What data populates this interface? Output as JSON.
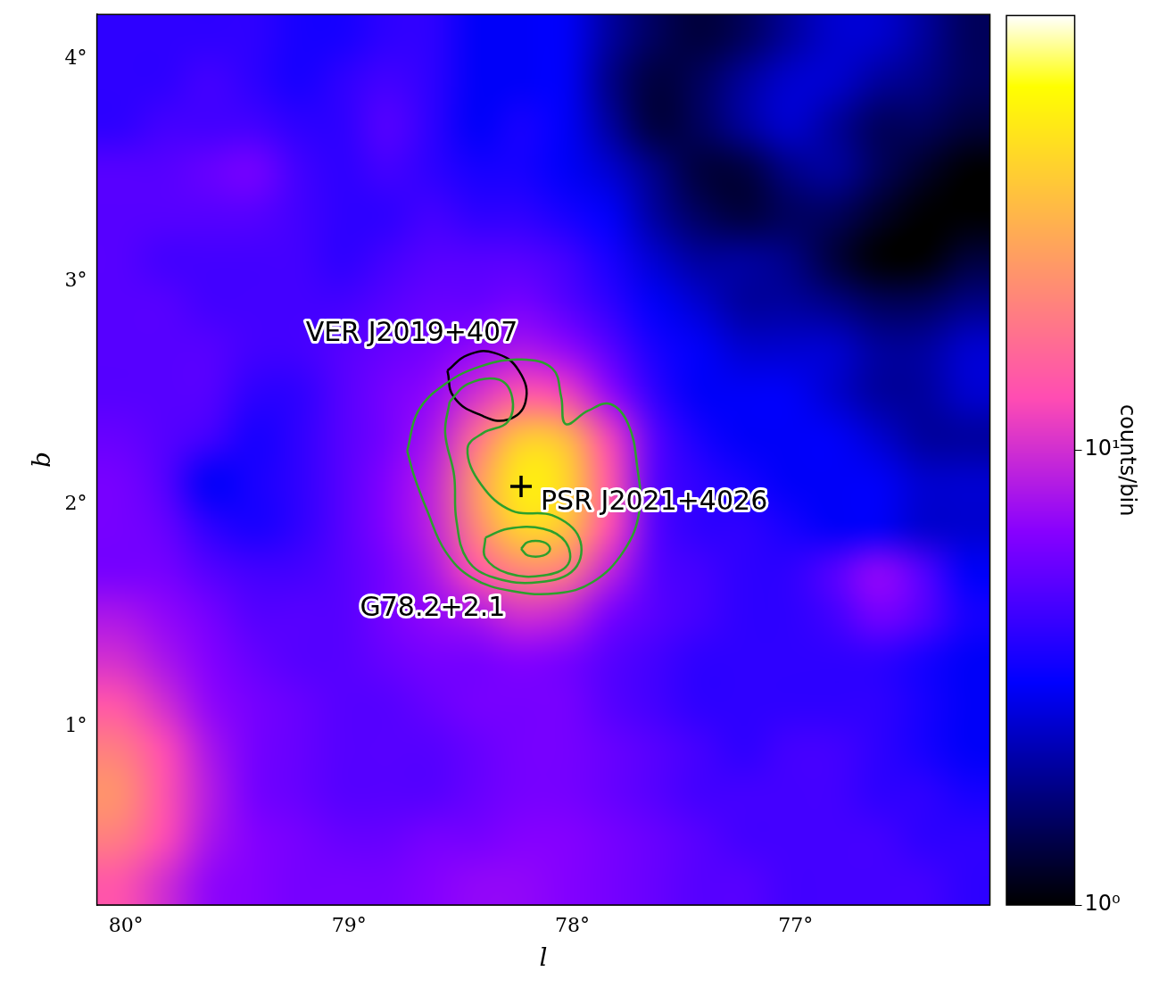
{
  "chart_data": {
    "type": "heatmap",
    "x_label": "l",
    "y_label": "b",
    "xlim": [
      80.13,
      76.13
    ],
    "ylim": [
      0.2,
      4.2
    ],
    "xticks": [
      {
        "value": 80,
        "label": "80°"
      },
      {
        "value": 79,
        "label": "79°"
      },
      {
        "value": 78,
        "label": "78°"
      },
      {
        "value": 77,
        "label": "77°"
      }
    ],
    "yticks": [
      {
        "value": 1,
        "label": "1°"
      },
      {
        "value": 2,
        "label": "2°"
      },
      {
        "value": 3,
        "label": "3°"
      },
      {
        "value": 4,
        "label": "4°"
      }
    ],
    "grid": false,
    "heatmap": {
      "l": [
        80.03,
        79.83,
        79.63,
        79.43,
        79.23,
        79.03,
        78.83,
        78.63,
        78.43,
        78.23,
        78.03,
        77.83,
        77.63,
        77.43,
        77.23,
        77.03,
        76.83,
        76.63,
        76.43,
        76.23
      ],
      "b": [
        4.1,
        3.9,
        3.7,
        3.5,
        3.3,
        3.1,
        2.9,
        2.7,
        2.5,
        2.3,
        2.1,
        1.9,
        1.7,
        1.5,
        1.3,
        1.1,
        0.9,
        0.7,
        0.5,
        0.3
      ],
      "counts": [
        [
          4,
          4,
          4,
          4,
          3.5,
          3.5,
          4,
          4,
          3,
          3,
          3,
          2,
          1.5,
          1.3,
          1.5,
          2,
          2.5,
          2.5,
          2,
          1.5
        ],
        [
          4,
          4,
          4.5,
          4,
          3.5,
          4,
          4.5,
          4,
          3,
          3,
          3,
          1.8,
          1.3,
          1.5,
          2,
          2.5,
          2.5,
          2,
          1.8,
          1.5
        ],
        [
          4,
          4.5,
          4.5,
          4.5,
          4,
          4,
          5,
          4,
          3,
          3.5,
          3,
          2,
          1.3,
          1.5,
          2,
          2.5,
          2,
          1.5,
          1.5,
          1.3
        ],
        [
          5,
          5,
          5.5,
          6,
          4.5,
          4,
          4.5,
          4,
          3.5,
          3.5,
          3,
          2.5,
          1.8,
          1.3,
          1.3,
          1.8,
          2,
          1.5,
          1.2,
          1
        ],
        [
          5,
          5,
          5,
          5,
          4.5,
          4,
          4,
          4.5,
          4,
          4,
          3.5,
          3,
          2,
          1.5,
          1.3,
          1.5,
          1.5,
          1.2,
          1,
          1
        ],
        [
          5,
          4.5,
          4.5,
          4.5,
          4.5,
          4,
          4.5,
          5,
          5,
          5,
          4.5,
          3.5,
          2.5,
          2,
          2,
          1.8,
          1.3,
          1,
          1,
          1.3
        ],
        [
          5,
          5,
          4.5,
          4.5,
          4.5,
          4.5,
          5,
          5.5,
          5.5,
          6,
          5,
          4,
          3,
          2.5,
          2,
          2,
          1.8,
          1.5,
          1.5,
          1.8
        ],
        [
          5,
          5,
          5,
          4.5,
          4.5,
          5,
          5.5,
          6,
          7,
          8,
          7,
          5,
          3.5,
          3,
          2.5,
          2.5,
          2.5,
          2,
          2,
          2.5
        ],
        [
          5,
          5,
          5,
          4,
          4,
          5,
          6,
          7,
          10,
          14,
          12,
          7,
          4,
          3,
          3,
          3,
          2.5,
          2,
          2,
          2.5
        ],
        [
          5.5,
          5,
          4.5,
          3.5,
          4,
          5,
          6,
          8,
          18,
          40,
          35,
          12,
          5,
          3.5,
          3,
          3,
          3,
          2.5,
          2,
          2
        ],
        [
          6,
          5,
          3,
          3.5,
          4,
          5,
          6.5,
          9,
          25,
          55,
          45,
          14,
          5,
          4,
          3.5,
          3,
          3,
          3,
          2.5,
          2.5
        ],
        [
          6,
          5.5,
          4,
          3.5,
          4,
          5,
          6.5,
          9,
          22,
          45,
          38,
          13,
          5,
          4,
          4,
          3.5,
          3,
          3,
          2.5,
          2.5
        ],
        [
          6,
          6,
          5,
          4.5,
          4.5,
          5,
          6,
          8,
          14,
          22,
          20,
          9,
          5,
          4.5,
          4,
          4,
          5,
          7,
          5,
          3
        ],
        [
          8,
          7,
          6,
          5,
          5,
          5,
          6,
          7,
          8,
          10,
          9,
          6,
          5,
          4.5,
          4,
          4,
          4.5,
          6,
          5,
          3.5
        ],
        [
          10,
          8,
          6.5,
          5.5,
          5,
          5,
          5.5,
          6,
          6,
          6.5,
          6,
          5,
          4.5,
          4,
          4,
          4,
          4,
          4,
          3.5,
          3
        ],
        [
          14,
          10,
          7,
          6,
          5.5,
          5,
          5,
          5.5,
          6,
          6,
          6,
          5,
          4.5,
          4,
          4,
          4,
          4,
          4,
          3.5,
          3
        ],
        [
          20,
          13,
          8,
          6,
          5.5,
          5,
          5,
          5,
          5.5,
          6,
          6,
          5.5,
          5,
          4.5,
          4,
          4.5,
          4.5,
          4,
          3.5,
          3
        ],
        [
          24,
          14,
          8.5,
          6,
          5.5,
          5,
          5,
          5,
          5.5,
          6,
          6,
          5.5,
          5,
          4.5,
          4.5,
          4.5,
          4.5,
          4,
          4,
          3.5
        ],
        [
          20,
          13,
          8,
          6.5,
          6,
          5.5,
          5.5,
          6,
          6,
          6.5,
          6.5,
          6,
          5.5,
          5,
          4.5,
          4.5,
          4.5,
          4.5,
          4,
          4
        ],
        [
          14,
          10,
          7,
          6.5,
          6,
          6,
          6,
          6.5,
          7,
          7,
          6.5,
          6,
          5.5,
          5,
          5,
          4.5,
          4.5,
          4.5,
          4.5,
          4
        ]
      ]
    },
    "colorbar": {
      "label": "counts/bin",
      "range": [
        1,
        90
      ],
      "ticks": [
        {
          "value": 1,
          "label": "10⁰"
        },
        {
          "value": 10,
          "label": "10¹"
        }
      ],
      "log": true
    },
    "series": [
      {
        "name": "G78.2+2.1",
        "type": "contour",
        "color": "#2ca02c",
        "contours": [
          [
            [
              78.74,
              2.24
            ],
            [
              78.69,
              2.42
            ],
            [
              78.57,
              2.54
            ],
            [
              78.41,
              2.62
            ],
            [
              78.23,
              2.65
            ],
            [
              78.09,
              2.61
            ],
            [
              78.05,
              2.48
            ],
            [
              78.03,
              2.36
            ],
            [
              77.93,
              2.42
            ],
            [
              77.83,
              2.45
            ],
            [
              77.75,
              2.36
            ],
            [
              77.71,
              2.17
            ],
            [
              77.7,
              1.97
            ],
            [
              77.77,
              1.79
            ],
            [
              77.91,
              1.65
            ],
            [
              78.07,
              1.6
            ],
            [
              78.27,
              1.61
            ],
            [
              78.45,
              1.67
            ],
            [
              78.57,
              1.79
            ],
            [
              78.65,
              1.97
            ],
            [
              78.71,
              2.13
            ]
          ],
          [
            [
              78.55,
              2.46
            ],
            [
              78.47,
              2.54
            ],
            [
              78.33,
              2.56
            ],
            [
              78.27,
              2.48
            ],
            [
              78.29,
              2.37
            ],
            [
              78.4,
              2.32
            ],
            [
              78.47,
              2.25
            ],
            [
              78.41,
              2.09
            ],
            [
              78.27,
              1.97
            ],
            [
              78.09,
              1.95
            ],
            [
              77.97,
              1.85
            ],
            [
              77.99,
              1.71
            ],
            [
              78.15,
              1.65
            ],
            [
              78.35,
              1.67
            ],
            [
              78.47,
              1.75
            ],
            [
              78.52,
              1.93
            ],
            [
              78.53,
              2.13
            ],
            [
              78.57,
              2.32
            ]
          ],
          [
            [
              78.39,
              1.85
            ],
            [
              78.29,
              1.89
            ],
            [
              78.13,
              1.89
            ],
            [
              78.03,
              1.83
            ],
            [
              78.02,
              1.73
            ],
            [
              78.13,
              1.68
            ],
            [
              78.29,
              1.69
            ],
            [
              78.39,
              1.76
            ]
          ],
          [
            [
              78.23,
              1.8
            ],
            [
              78.2,
              1.83
            ],
            [
              78.13,
              1.83
            ],
            [
              78.1,
              1.8
            ],
            [
              78.13,
              1.77
            ],
            [
              78.2,
              1.77
            ]
          ]
        ]
      },
      {
        "name": "VER J2019+407",
        "type": "ellipse",
        "color": "#000000",
        "outline": [
          [
            78.56,
            2.6
          ],
          [
            78.47,
            2.67
          ],
          [
            78.35,
            2.68
          ],
          [
            78.24,
            2.6
          ],
          [
            78.21,
            2.46
          ],
          [
            78.29,
            2.38
          ],
          [
            78.41,
            2.4
          ],
          [
            78.53,
            2.48
          ]
        ]
      },
      {
        "name": "PSR J2021+4026",
        "type": "scatter",
        "marker": "cross",
        "color": "#000000",
        "x": [
          78.23
        ],
        "y": [
          2.08
        ]
      }
    ]
  }
}
